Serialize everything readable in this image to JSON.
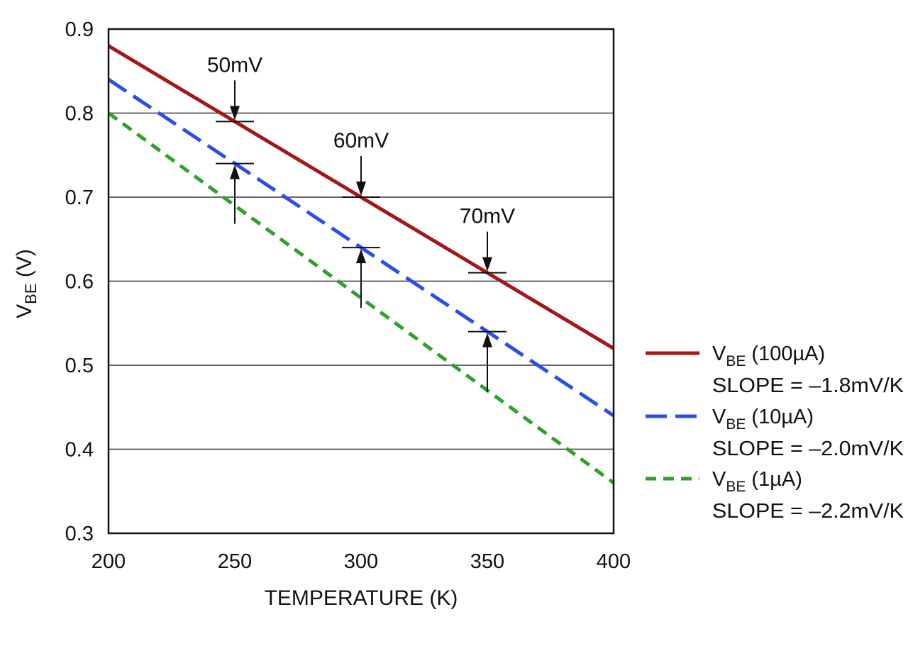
{
  "chart_data": {
    "type": "line",
    "xlabel": "TEMPERATURE (K)",
    "ylabel": {
      "main": "V",
      "sub": "BE",
      "suffix": " (V)"
    },
    "xlim": [
      200,
      400
    ],
    "ylim": [
      0.3,
      0.9
    ],
    "x_ticks": [
      "200",
      "250",
      "300",
      "350",
      "400"
    ],
    "y_ticks": [
      "0.3",
      "0.4",
      "0.5",
      "0.6",
      "0.7",
      "0.8",
      "0.9"
    ],
    "grid": "horizontal",
    "legend_position": "right",
    "series": [
      {
        "name": {
          "main": "V",
          "sub": "BE",
          "suffix": " (100µA)"
        },
        "slope_label": "SLOPE = –1.8mV/K",
        "x": [
          200,
          400
        ],
        "y": [
          0.88,
          0.52
        ],
        "color": "#a01818",
        "style": "solid"
      },
      {
        "name": {
          "main": "V",
          "sub": "BE",
          "suffix": " (10µA)"
        },
        "slope_label": "SLOPE = –2.0mV/K",
        "x": [
          200,
          400
        ],
        "y": [
          0.84,
          0.44
        ],
        "color": "#2a4fe6",
        "style": "long-dash"
      },
      {
        "name": {
          "main": "V",
          "sub": "BE",
          "suffix": " (1µA)"
        },
        "slope_label": "SLOPE = –2.2mV/K",
        "x": [
          200,
          400
        ],
        "y": [
          0.8,
          0.36
        ],
        "color": "#2fa12a",
        "style": "short-dash"
      }
    ],
    "annotations": [
      {
        "label": "50mV",
        "x": 250,
        "upper": 0.79,
        "lower": 0.74
      },
      {
        "label": "60mV",
        "x": 300,
        "upper": 0.7,
        "lower": 0.64
      },
      {
        "label": "70mV",
        "x": 350,
        "upper": 0.61,
        "lower": 0.54
      }
    ]
  }
}
